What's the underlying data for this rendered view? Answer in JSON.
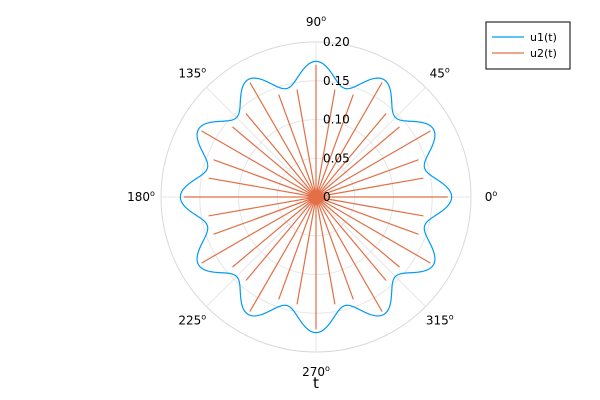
{
  "chart_data": {
    "type": "polar-line",
    "xlabel": "t",
    "rlim": [
      0,
      0.2
    ],
    "r_ticks": [
      "0",
      "0.05",
      "0.10",
      "0.15",
      "0.20"
    ],
    "r_tick_values": [
      0,
      0.05,
      0.1,
      0.15,
      0.2
    ],
    "angle_ticks_deg": [
      0,
      45,
      90,
      135,
      180,
      225,
      270,
      315
    ],
    "grid": true,
    "legend": {
      "position": "top-right"
    },
    "series": [
      {
        "name": "u1(t)",
        "color": "#009af9",
        "style": "smooth",
        "function": "r = 0.16 + 0.015*cos(12*theta)",
        "r_base": 0.16,
        "r_amplitude": 0.015,
        "lobes": 12
      },
      {
        "name": "u2(t)",
        "color": "#e26f46",
        "style": "star",
        "spokes": 36,
        "r_peak_base": 0.15,
        "r_peak_amplitude": 0.02,
        "r_inner_value": 0
      }
    ]
  }
}
